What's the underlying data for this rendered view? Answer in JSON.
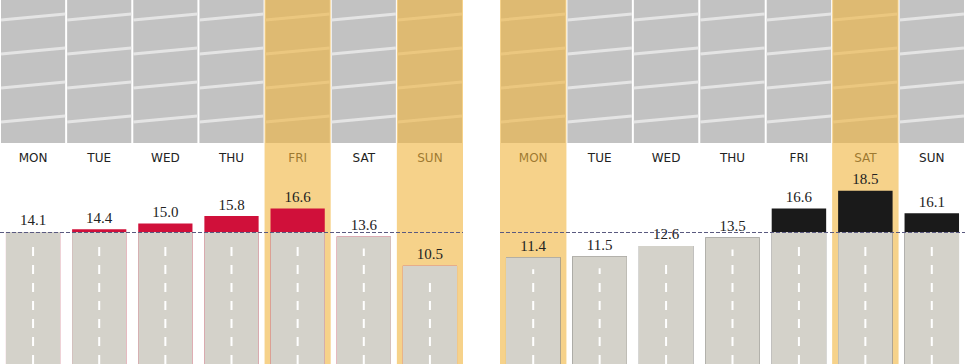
{
  "chart_data": [
    {
      "type": "bar",
      "categories": [
        "MON",
        "TUE",
        "WED",
        "THU",
        "FRI",
        "SAT",
        "SUN"
      ],
      "values": [
        14.1,
        14.4,
        15.0,
        15.8,
        16.6,
        13.6,
        10.5
      ],
      "value_labels": [
        "14.1",
        "14.4",
        "15.0",
        "15.8",
        "16.6",
        "13.6",
        "10.5"
      ],
      "color": "#d0103a",
      "ylim": [
        0,
        20.5
      ],
      "reference_line": 14.1,
      "highlighted": [
        "FRI",
        "SUN"
      ],
      "data_labels": true,
      "tick_labels": "x"
    },
    {
      "type": "bar",
      "categories": [
        "MON",
        "TUE",
        "WED",
        "THU",
        "FRI",
        "SAT",
        "SUN"
      ],
      "values": [
        11.4,
        11.5,
        12.6,
        13.5,
        16.6,
        18.5,
        16.1
      ],
      "color": "#1a1a1a",
      "ylim": [
        0,
        20.5
      ],
      "reference_line": 14.1,
      "highlighted": [
        "MON",
        "SAT"
      ],
      "data_labels": true,
      "tick_labels": "x"
    }
  ]
}
